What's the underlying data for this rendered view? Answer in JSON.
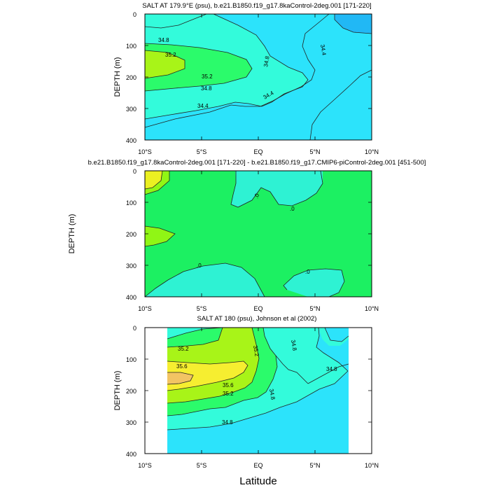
{
  "colors": {
    "c344": "#2ce3fb",
    "c348": "#33fbdb",
    "c352": "#2bfb6b",
    "c356": "#a8f418",
    "c360": "#f6ee30",
    "c364": "#f2c463",
    "c_deep": "#21b8f5",
    "d_zero": "#1cf062",
    "d_neg": "#2ef2d3",
    "d_pos": "#90f615",
    "d_pos2": "#ebf021",
    "line": "#222222"
  },
  "shared": {
    "xlabel": "Latitude",
    "ylabel_text": "DEPTH (m)",
    "xticks": [
      "10°S",
      "5°S",
      "EQ",
      "5°N",
      "10°N"
    ],
    "yticks": [
      "0",
      "100",
      "200",
      "300",
      "400"
    ]
  },
  "chart_data": [
    {
      "type": "contour",
      "title": "SALT AT 179.9°E (psu), b.e21.B1850.f19_g17.8kaControl-2deg.001 [171-220]",
      "ylabel": "DEPTH (m)",
      "xlim": [
        -10,
        10
      ],
      "ylim": [
        400,
        0
      ],
      "contour_labels": [
        "34.8",
        "35.2",
        "35.2",
        "34.8",
        "34.4",
        "34.8",
        "34.4",
        "34.4"
      ]
    },
    {
      "type": "contour",
      "title": "b.e21.B1850.f19_g17.8kaControl-2deg.001 [171-220] - b.e21.B1850.f19_g17.CMIP6-piControl-2deg.001 [451-500]",
      "ylabel": "DEPTH (m)",
      "xlim": [
        -10,
        10
      ],
      "ylim": [
        400,
        0
      ],
      "contour_labels": [
        ".0",
        ".0",
        ".0",
        ".0"
      ]
    },
    {
      "type": "contour",
      "title": "SALT AT 180 (psu), Johnson et al (2002)",
      "ylabel": "DEPTH (m)",
      "xlabel": "Latitude",
      "xlim": [
        -10,
        10
      ],
      "ylim": [
        400,
        0
      ],
      "data_extent_lat": [
        -8,
        8
      ],
      "contour_labels": [
        "35.2",
        "35.6",
        "35.6",
        "35.2",
        "35.2",
        "34.8",
        "34.8",
        "34.8",
        "34.8"
      ]
    }
  ]
}
